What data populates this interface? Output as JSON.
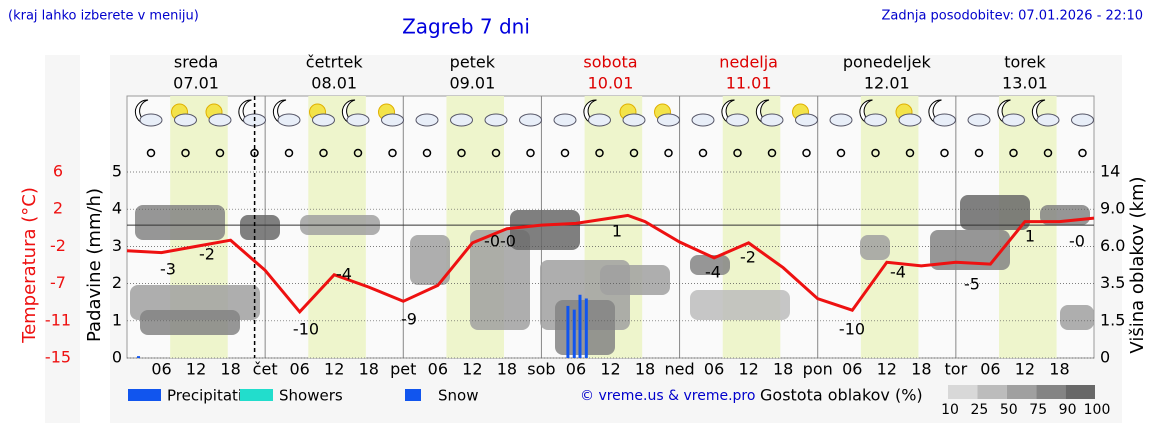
{
  "header": {
    "hint": "(kraj lahko izberete v meniju)",
    "updated": "Zadnja posodobitev: 07.01.2026 - 22:10"
  },
  "chart_data": {
    "type": "line",
    "title": "Zagreb 7 dni",
    "days": [
      {
        "name": "sreda",
        "date": "07.01",
        "weekend": false
      },
      {
        "name": "četrtek",
        "date": "08.01",
        "weekend": false
      },
      {
        "name": "petek",
        "date": "09.01",
        "weekend": false
      },
      {
        "name": "sobota",
        "date": "10.01",
        "weekend": true
      },
      {
        "name": "nedelja",
        "date": "11.01",
        "weekend": true
      },
      {
        "name": "ponedeljek",
        "date": "12.01",
        "weekend": false
      },
      {
        "name": "torek",
        "date": "13.01",
        "weekend": false
      }
    ],
    "day_abbr": [
      "čet",
      "pet",
      "sob",
      "ned",
      "pon",
      "tor"
    ],
    "hour_labels": [
      "06",
      "12",
      "18"
    ],
    "xlim": [
      0,
      168
    ],
    "now_hour": 22.17,
    "y_label": "Padavine (mm/h)",
    "ylim": [
      0,
      5
    ],
    "yticks": [
      0,
      1,
      2,
      3,
      4,
      5
    ],
    "temp_label": "Temperatura (°C)",
    "templim": [
      -15,
      6
    ],
    "tempticks": [
      {
        "value": -15,
        "label": "-15"
      },
      {
        "value": -10.8,
        "label": "-11"
      },
      {
        "value": -6.6,
        "label": "-7"
      },
      {
        "value": -2.4,
        "label": "-2"
      },
      {
        "value": 1.8,
        "label": "2"
      },
      {
        "value": 6,
        "label": "6"
      }
    ],
    "y2_label": "Višina oblakov (km)",
    "y2ticks": [
      "0",
      "1.5",
      "3.5",
      "6.0",
      "9.0",
      "14"
    ],
    "temperature": {
      "color": "#ee1111",
      "x": [
        0,
        6,
        12,
        18,
        24,
        30,
        36,
        42,
        48,
        54,
        60,
        66,
        72,
        78,
        84,
        87,
        90,
        96,
        102,
        108,
        114,
        120,
        126,
        132,
        138,
        144,
        150,
        156,
        162,
        168
      ],
      "values": [
        -2.9,
        -3.1,
        -2.4,
        -1.7,
        -5.1,
        -9.8,
        -5.6,
        -7.0,
        -8.6,
        -6.8,
        -2.0,
        -0.4,
        0,
        0.2,
        0.8,
        1.1,
        0.4,
        -1.9,
        -3.7,
        -2.0,
        -4.8,
        -8.3,
        -9.6,
        -4.2,
        -4.6,
        -4.2,
        -4.4,
        0.4,
        0.4,
        0.8
      ]
    },
    "annotations": [
      "-3",
      "-2",
      "-10",
      "-4",
      "-9",
      "-0-0",
      "1",
      "-4",
      "-2",
      "-10",
      "-4",
      "-5",
      "1",
      "-0"
    ],
    "precipitation": {
      "color": "#1155ee",
      "x": [
        2,
        76.6,
        77.7,
        78.7,
        79.8
      ],
      "values": [
        0.05,
        1.4,
        1.3,
        1.7,
        1.6
      ]
    },
    "legend": [
      "Precipitation",
      "Showers",
      "Snow"
    ],
    "legend_colors": [
      "#1155ee",
      "#22ddcc",
      "#1155ee"
    ],
    "credit": "© vreme.us & vreme.pro",
    "cloud_legend": "Gostota oblakov (%)",
    "cloud_scale": [
      "10",
      "25",
      "50",
      "75",
      "90",
      "100"
    ],
    "cloud_colors": [
      "#d8d8d8",
      "#bcbcbc",
      "#a0a0a0",
      "#848484",
      "#686868",
      "#4c4c4c"
    ]
  }
}
